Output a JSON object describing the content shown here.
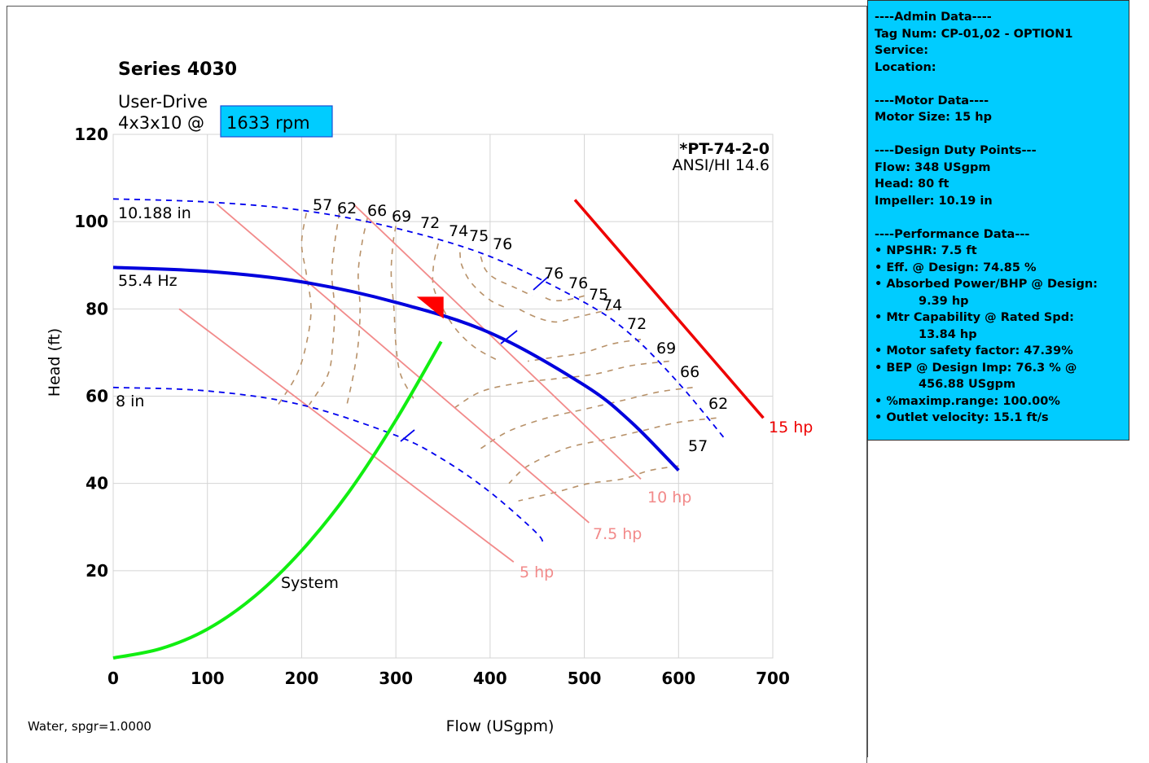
{
  "chart_data": {
    "type": "line",
    "title": "Series 4030",
    "subtitle_line1": "User-Drive",
    "subtitle_line2_prefix": "4x3x10 @",
    "speed_label": "1633 rpm",
    "xlabel": "Flow (USgpm)",
    "ylabel": "Head (ft)",
    "xlim": [
      0,
      700
    ],
    "ylim": [
      0,
      120
    ],
    "x_ticks": [
      "0",
      "100",
      "200",
      "300",
      "400",
      "500",
      "600",
      "700"
    ],
    "y_ticks": [
      "20",
      "40",
      "60",
      "80",
      "100",
      "120"
    ],
    "standard_code": "*PT-74-2-0",
    "standard": "ANSI/HI 14.6",
    "fluid": "Water, spgr=1.0000",
    "grid": true,
    "curve_labels": {
      "max_impeller": "10.188 in",
      "min_impeller": "8 in",
      "operating": "55.4 Hz",
      "system": "System"
    },
    "series": [
      {
        "name": "10.188 in",
        "style": "dashed",
        "color": "#0000ee",
        "x": [
          0,
          100,
          200,
          300,
          400,
          500,
          550,
          600,
          650
        ],
        "y": [
          105.2,
          104.5,
          102.6,
          98.5,
          92.0,
          81.5,
          74.0,
          63.0,
          50.0
        ]
      },
      {
        "name": "8 in",
        "style": "dashed",
        "color": "#0000ee",
        "x": [
          0,
          100,
          200,
          300,
          350,
          400,
          450,
          455
        ],
        "y": [
          62.0,
          61.2,
          58.0,
          51.0,
          45.5,
          38.0,
          28.5,
          26.0
        ]
      },
      {
        "name": "55.4 Hz",
        "style": "solid",
        "color": "#0000dd",
        "x": [
          0,
          100,
          200,
          300,
          400,
          500,
          550,
          600
        ],
        "y": [
          89.5,
          88.6,
          86.2,
          81.5,
          74.5,
          62.5,
          54.0,
          43.0
        ]
      },
      {
        "name": "System",
        "style": "solid",
        "color": "#11ee11",
        "x": [
          0,
          50,
          100,
          150,
          200,
          250,
          300,
          348
        ],
        "y": [
          0,
          2.1,
          6.6,
          14.1,
          24.6,
          38.0,
          54.5,
          72.5
        ]
      }
    ],
    "efficiency_contours": [
      {
        "label": "57",
        "left": {
          "x": [
            205,
            200,
            205,
            210,
            205,
            195,
            175
          ],
          "y": [
            102,
            95,
            88,
            80,
            72,
            65,
            58
          ]
        },
        "right": {
          "x": [
            600,
            570,
            540,
            505,
            470,
            430
          ],
          "y": [
            44,
            43,
            41,
            40,
            38,
            36
          ]
        }
      },
      {
        "label": "62",
        "left": {
          "x": [
            240,
            235,
            232,
            235,
            233,
            228,
            208
          ],
          "y": [
            102,
            95,
            88,
            80,
            72,
            65,
            58
          ]
        },
        "right": {
          "x": [
            640,
            600,
            560,
            520,
            480,
            440,
            420
          ],
          "y": [
            55,
            54,
            52,
            50,
            48,
            44,
            40
          ]
        }
      },
      {
        "label": "66",
        "left": {
          "x": [
            270,
            264,
            260,
            262,
            260,
            255,
            248
          ],
          "y": [
            101,
            95,
            88,
            80,
            72,
            65,
            58
          ]
        },
        "right": {
          "x": [
            615,
            580,
            540,
            500,
            460,
            420,
            390
          ],
          "y": [
            62,
            61,
            59,
            57,
            55,
            52,
            48
          ]
        }
      },
      {
        "label": "69",
        "left": {
          "x": [
            300,
            297,
            295,
            298,
            300,
            305,
            320
          ],
          "y": [
            99,
            95,
            88,
            80,
            72,
            65,
            59
          ]
        },
        "right": {
          "x": [
            590,
            550,
            510,
            470,
            430,
            390,
            360
          ],
          "y": [
            68,
            67,
            65,
            64,
            63,
            61,
            57
          ]
        }
      },
      {
        "label": "72",
        "left": {
          "x": [
            345,
            340,
            340,
            350,
            365,
            385,
            410
          ],
          "y": [
            95,
            90,
            85,
            80,
            75,
            71,
            68
          ]
        },
        "right": {
          "x": [
            560,
            530,
            500,
            470,
            440
          ],
          "y": [
            73,
            72,
            70,
            69,
            68
          ]
        }
      },
      {
        "label": "74",
        "left": {
          "x": [
            368,
            370,
            380,
            400,
            420
          ],
          "y": [
            93,
            90,
            86,
            82,
            80
          ]
        },
        "right": {
          "x": [
            530,
            510,
            490,
            470,
            450,
            430
          ],
          "y": [
            80,
            79,
            78,
            77,
            78,
            80
          ]
        }
      },
      {
        "label": "75",
        "left": {
          "x": [
            390,
            395,
            405,
            425,
            445
          ],
          "y": [
            92,
            89,
            87,
            85,
            83
          ]
        },
        "right": {
          "x": [
            500,
            480,
            465,
            455
          ],
          "y": [
            83,
            82,
            82,
            83
          ]
        }
      }
    ],
    "contour_number_labels": [
      "57",
      "62",
      "66",
      "69",
      "72",
      "74",
      "75",
      "76",
      "76",
      "76",
      "75",
      "74",
      "72",
      "69",
      "66",
      "62",
      "57"
    ],
    "power_lines": [
      {
        "label": "5 hp",
        "x": [
          70,
          425
        ],
        "y": [
          80,
          22
        ]
      },
      {
        "label": "7.5 hp",
        "x": [
          110,
          505
        ],
        "y": [
          104,
          31
        ]
      },
      {
        "label": "10 hp",
        "x": [
          255,
          560
        ],
        "y": [
          104,
          41
        ]
      },
      {
        "label": "15 hp",
        "x": [
          490,
          690
        ],
        "y": [
          105,
          55
        ]
      }
    ],
    "design_point": {
      "x": 348,
      "y": 80
    },
    "marker_color": "#ff0000"
  },
  "side_panel": {
    "admin_header": "----Admin Data----",
    "tag": "Tag Num: CP-01,02 - OPTION1",
    "service": "Service:",
    "location": "Location:",
    "motor_header": "----Motor Data----",
    "motor_size": "Motor Size: 15 hp",
    "design_header": "----Design Duty Points---",
    "flow": "Flow: 348 USgpm",
    "head": "Head: 80 ft",
    "impeller": "Impeller: 10.19 in",
    "perf_header": "----Performance Data---",
    "npshr": "• NPSHR: 7.5 ft",
    "eff": "• Eff. @ Design: 74.85 %",
    "bhp": "• Absorbed Power/BHP @ Design:",
    "bhp_val": "9.39 hp",
    "mtr_cap": "• Mtr Capability @ Rated Spd:",
    "mtr_cap_val": "13.84 hp",
    "msf": "• Motor safety factor: 47.39%",
    "bep": "• BEP @ Design Imp: 76.3 % @",
    "bep_val": "456.88 USgpm",
    "maximp": "• %maximp.range: 100.00%",
    "outlet": "• Outlet velocity: 15.1 ft/s"
  }
}
